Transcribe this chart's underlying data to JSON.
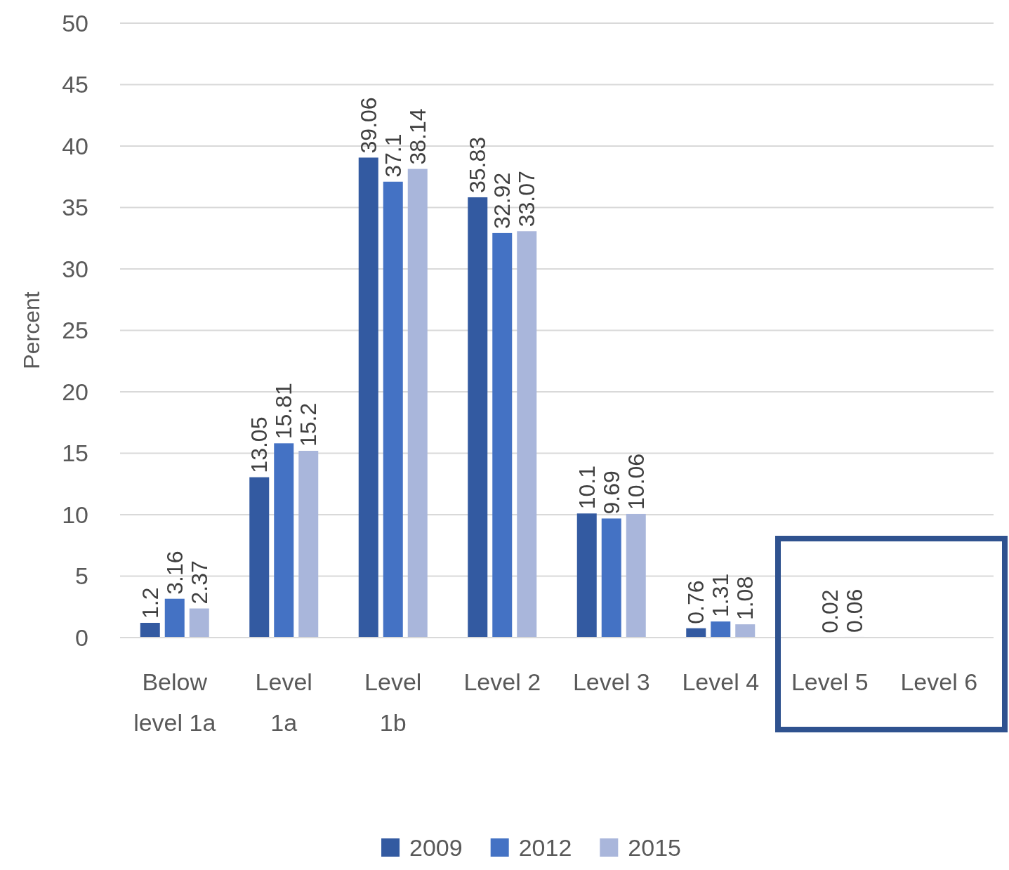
{
  "chart_data": {
    "type": "bar",
    "ylabel": "Percent",
    "categories": [
      "Below level 1a",
      "Level 1a",
      "Level 1b",
      "Level 2",
      "Level 3",
      "Level 4",
      "Level 5",
      "Level 6"
    ],
    "series": [
      {
        "name": "2009",
        "color": "#335aa1",
        "values": [
          1.2,
          13.05,
          39.06,
          35.83,
          10.1,
          0.76,
          null,
          null
        ]
      },
      {
        "name": "2012",
        "color": "#4472c4",
        "values": [
          3.16,
          15.81,
          37.1,
          32.92,
          9.69,
          1.31,
          0.02,
          null
        ]
      },
      {
        "name": "2015",
        "color": "#a9b6db",
        "values": [
          2.37,
          15.2,
          38.14,
          33.07,
          10.06,
          1.08,
          0.06,
          null
        ]
      }
    ],
    "ylim": [
      0,
      50
    ],
    "yticks": [
      0,
      5,
      10,
      15,
      20,
      25,
      30,
      35,
      40,
      45,
      50
    ],
    "grid": "y",
    "legend": "bottom",
    "data_labels": true
  }
}
